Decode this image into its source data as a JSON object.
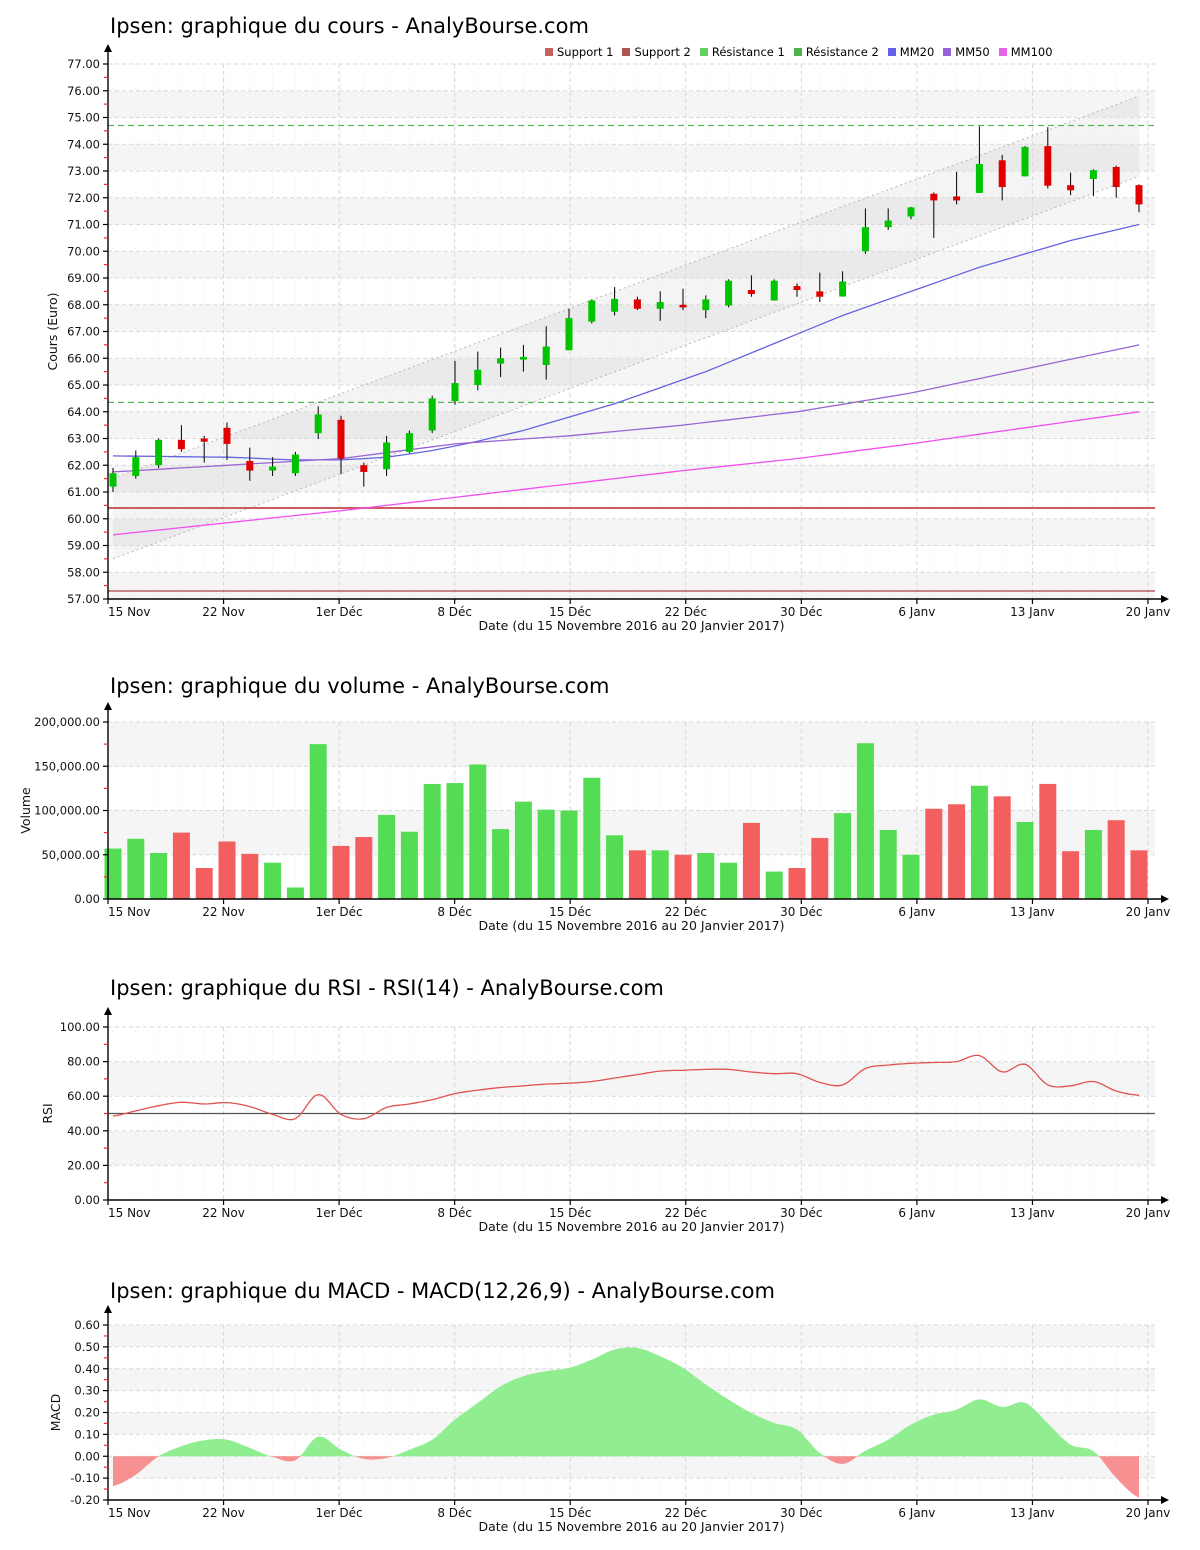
{
  "x_axis": {
    "tick_labels": [
      "15 Nov",
      "22 Nov",
      "1er Déc",
      "8 Déc",
      "15 Déc",
      "22 Déc",
      "30 Déc",
      "6 Janv",
      "13 Janv",
      "20 Janv"
    ],
    "caption": "Date (du 15 Novembre 2016 au 20 Janvier 2017)"
  },
  "legend": {
    "items": [
      {
        "label": "Support 1",
        "color": "#c46060"
      },
      {
        "label": "Support 2",
        "color": "#b05454"
      },
      {
        "label": "Résistance 1",
        "color": "#5ed05e"
      },
      {
        "label": "Résistance 2",
        "color": "#4db44d"
      },
      {
        "label": "MM20",
        "color": "#6262e8"
      },
      {
        "label": "MM50",
        "color": "#9a62d8"
      },
      {
        "label": "MM100",
        "color": "#e862e8"
      }
    ]
  },
  "chart_data": [
    {
      "id": "cours",
      "type": "candlestick",
      "title": "Ipsen: graphique du cours - AnalyBourse.com",
      "ylabel": "Cours (Euro)",
      "ylim": [
        57,
        77
      ],
      "y_step": 1,
      "y_minor_step": 0.5,
      "y_tick_values": [
        57,
        58,
        59,
        60,
        61,
        62,
        63,
        64,
        65,
        66,
        67,
        68,
        69,
        70,
        71,
        72,
        73,
        74,
        75,
        76,
        77
      ],
      "y_tick_labels": [
        "57.00",
        "58.00",
        "59.00",
        "60.00",
        "61.00",
        "62.00",
        "63.00",
        "64.00",
        "65.00",
        "66.00",
        "67.00",
        "68.00",
        "69.00",
        "70.00",
        "71.00",
        "72.00",
        "73.00",
        "74.00",
        "75.00",
        "76.00",
        "77.00"
      ],
      "candles_ohlc": [
        [
          61.2,
          61.9,
          61.0,
          61.7
        ],
        [
          61.6,
          62.55,
          61.5,
          62.3
        ],
        [
          62.0,
          63.0,
          61.9,
          62.95
        ],
        [
          62.95,
          63.5,
          62.5,
          62.6
        ],
        [
          63.0,
          63.1,
          62.1,
          62.88
        ],
        [
          63.4,
          63.6,
          62.2,
          62.8
        ],
        [
          62.16,
          62.66,
          61.42,
          61.8
        ],
        [
          61.8,
          62.3,
          61.6,
          61.95
        ],
        [
          61.7,
          62.5,
          61.6,
          62.4
        ],
        [
          63.2,
          64.2,
          62.98,
          63.9
        ],
        [
          63.7,
          63.85,
          61.67,
          62.25
        ],
        [
          62.0,
          62.1,
          61.2,
          61.75
        ],
        [
          61.85,
          63.1,
          61.6,
          62.85
        ],
        [
          62.5,
          63.3,
          62.45,
          63.2
        ],
        [
          63.3,
          64.6,
          63.2,
          64.5
        ],
        [
          64.4,
          65.9,
          64.26,
          65.07
        ],
        [
          65.0,
          66.25,
          64.8,
          65.57
        ],
        [
          65.8,
          66.4,
          65.3,
          66.0
        ],
        [
          65.95,
          66.5,
          65.5,
          66.05
        ],
        [
          65.75,
          67.2,
          65.2,
          66.44
        ],
        [
          66.3,
          67.85,
          66.3,
          67.5
        ],
        [
          67.37,
          68.2,
          67.3,
          68.16
        ],
        [
          67.74,
          68.66,
          67.6,
          68.22
        ],
        [
          68.2,
          68.3,
          67.8,
          67.85
        ],
        [
          67.85,
          68.5,
          67.4,
          68.1
        ],
        [
          68.0,
          68.6,
          67.8,
          67.9
        ],
        [
          67.8,
          68.35,
          67.5,
          68.2
        ],
        [
          67.97,
          68.95,
          67.9,
          68.9
        ],
        [
          68.55,
          69.1,
          68.3,
          68.4
        ],
        [
          68.16,
          68.95,
          68.15,
          68.9
        ],
        [
          68.7,
          68.8,
          68.3,
          68.55
        ],
        [
          68.5,
          69.2,
          68.1,
          68.3
        ],
        [
          68.31,
          69.25,
          68.3,
          68.87
        ],
        [
          70.0,
          71.6,
          69.9,
          70.9
        ],
        [
          70.9,
          71.6,
          70.8,
          71.15
        ],
        [
          71.3,
          71.66,
          71.2,
          71.64
        ],
        [
          72.15,
          72.2,
          70.5,
          71.9
        ],
        [
          72.05,
          72.97,
          71.75,
          71.9
        ],
        [
          72.18,
          74.67,
          72.18,
          73.26
        ],
        [
          73.4,
          73.6,
          71.9,
          72.4
        ],
        [
          72.8,
          73.93,
          72.8,
          73.9
        ],
        [
          73.93,
          74.64,
          72.35,
          72.45
        ],
        [
          72.47,
          72.94,
          72.1,
          72.28
        ],
        [
          72.7,
          73.06,
          72.06,
          73.03
        ],
        [
          73.15,
          73.2,
          72.0,
          72.4
        ],
        [
          72.47,
          72.5,
          71.46,
          71.75
        ]
      ],
      "overlays": {
        "support1": 60.4,
        "support2": 57.3,
        "resistance1": 64.35,
        "resistance2": 74.7,
        "channel_lower": [
          58.5,
          72.8
        ],
        "channel_upper": [
          61.5,
          75.8
        ],
        "mm20": [
          62.35,
          62.34,
          62.33,
          62.32,
          62.31,
          62.3,
          62.27,
          62.23,
          62.2,
          62.2,
          62.2,
          62.25,
          62.3,
          62.42,
          62.55,
          62.72,
          62.9,
          63.1,
          63.3,
          63.55,
          63.8,
          64.05,
          64.3,
          64.6,
          64.9,
          65.2,
          65.5,
          65.85,
          66.2,
          66.55,
          66.9,
          67.25,
          67.6,
          67.9,
          68.2,
          68.5,
          68.8,
          69.1,
          69.4,
          69.65,
          69.9,
          70.15,
          70.4,
          70.6,
          70.8,
          71.0
        ],
        "mm50": [
          61.75,
          61.8,
          61.85,
          61.9,
          61.95,
          62.0,
          62.05,
          62.1,
          62.15,
          62.2,
          62.25,
          62.36,
          62.47,
          62.58,
          62.69,
          62.8,
          62.86,
          62.92,
          62.98,
          63.04,
          63.1,
          63.18,
          63.26,
          63.34,
          63.42,
          63.5,
          63.6,
          63.7,
          63.8,
          63.9,
          64.0,
          64.14,
          64.28,
          64.42,
          64.56,
          64.7,
          64.88,
          65.06,
          65.24,
          65.42,
          65.6,
          65.78,
          65.96,
          66.14,
          66.32,
          66.5
        ],
        "mm100": [
          59.4,
          59.49,
          59.58,
          59.67,
          59.76,
          59.85,
          59.94,
          60.03,
          60.12,
          60.21,
          60.3,
          60.4,
          60.5,
          60.6,
          60.7,
          60.8,
          60.9,
          61.0,
          61.1,
          61.2,
          61.3,
          61.4,
          61.5,
          61.6,
          61.7,
          61.8,
          61.89,
          61.98,
          62.07,
          62.16,
          62.25,
          62.36,
          62.47,
          62.58,
          62.69,
          62.8,
          62.92,
          63.04,
          63.16,
          63.28,
          63.4,
          63.52,
          63.64,
          63.76,
          63.88,
          64.0
        ]
      }
    },
    {
      "id": "volume",
      "type": "bar",
      "title": "Ipsen: graphique du volume - AnalyBourse.com",
      "ylabel": "Volume",
      "ylim": [
        0,
        200000
      ],
      "y_step": 50000,
      "y_minor_step": 25000,
      "y_tick_values": [
        0,
        50000,
        100000,
        150000,
        200000
      ],
      "y_tick_labels": [
        "0.00",
        "50,000.00",
        "100,000.00",
        "150,000.00",
        "200,000.00"
      ],
      "values": [
        57000,
        68000,
        52000,
        75000,
        35000,
        65000,
        51000,
        41000,
        13000,
        175000,
        60000,
        70000,
        95000,
        76000,
        130000,
        131000,
        152000,
        79000,
        110000,
        101000,
        100000,
        137000,
        72000,
        55000,
        55000,
        50000,
        52000,
        41000,
        86000,
        31000,
        35000,
        69000,
        97000,
        176000,
        78000,
        50000,
        102000,
        107000,
        128000,
        116000,
        87000,
        130000,
        54000,
        78000,
        89000,
        55000
      ]
    },
    {
      "id": "rsi",
      "type": "line",
      "title": "Ipsen: graphique du RSI - RSI(14) - AnalyBourse.com",
      "ylabel": "RSI",
      "ylim": [
        0,
        100
      ],
      "y_step": 20,
      "y_minor_step": 10,
      "y_tick_values": [
        0,
        20,
        40,
        60,
        80,
        100
      ],
      "y_tick_labels": [
        "0.00",
        "20.00",
        "40.00",
        "60.00",
        "80.00",
        "100.00"
      ],
      "midline": 50,
      "values": [
        48.5,
        51.5,
        54.5,
        56.5,
        55.5,
        56.3,
        54,
        49.5,
        47,
        61,
        49.5,
        47,
        53.5,
        55.5,
        58,
        61.5,
        63.5,
        65,
        66,
        67,
        67.5,
        68.5,
        70.5,
        72.5,
        74.5,
        75,
        75.5,
        75.5,
        74,
        73,
        73,
        68,
        66.5,
        76,
        78,
        79,
        79.5,
        80,
        83.5,
        74,
        78.5,
        66.5,
        66,
        68.5,
        63,
        60.5
      ]
    },
    {
      "id": "macd",
      "type": "area",
      "title": "Ipsen: graphique du MACD - MACD(12,26,9) - AnalyBourse.com",
      "ylabel": "MACD",
      "ylim": [
        -0.2,
        0.6
      ],
      "y_step": 0.1,
      "y_minor_step": 0.05,
      "y_tick_values": [
        -0.2,
        -0.1,
        0,
        0.1,
        0.2,
        0.3,
        0.4,
        0.5,
        0.6
      ],
      "y_tick_labels": [
        "-0.20",
        "-0.10",
        "0.00",
        "0.10",
        "0.20",
        "0.30",
        "0.40",
        "0.50",
        "0.60"
      ],
      "values": [
        -0.137,
        -0.084,
        0.0,
        0.046,
        0.073,
        0.076,
        0.038,
        -0.003,
        -0.018,
        0.09,
        0.03,
        -0.012,
        -0.008,
        0.03,
        0.076,
        0.168,
        0.244,
        0.32,
        0.366,
        0.389,
        0.404,
        0.442,
        0.488,
        0.495,
        0.457,
        0.404,
        0.328,
        0.259,
        0.198,
        0.152,
        0.122,
        0.015,
        -0.035,
        0.025,
        0.076,
        0.145,
        0.19,
        0.213,
        0.26,
        0.225,
        0.245,
        0.15,
        0.053,
        0.023,
        -0.099,
        -0.19
      ]
    }
  ],
  "colors": {
    "candle_up": "#00c400",
    "candle_down": "#e00000",
    "wick": "#000000",
    "bar_up": "#54dd54",
    "bar_down": "#f35f5f",
    "area_up": "#90ee90",
    "area_down": "#f79090",
    "rsi_line": "#e05252",
    "midline": "#555555",
    "support1": "#cd5c5c",
    "support2": "#aa4444",
    "resistance": "#56b856",
    "mm20": "#6464e0",
    "mm50": "#9a64d4",
    "mm100": "#f050f0",
    "channel": "#b8b8b8",
    "grid": "#d9d9d9",
    "grid_minor": "#ececec",
    "stripe": "#f5f5f5",
    "axis": "#000000",
    "minor_tick": "#ff2222"
  }
}
